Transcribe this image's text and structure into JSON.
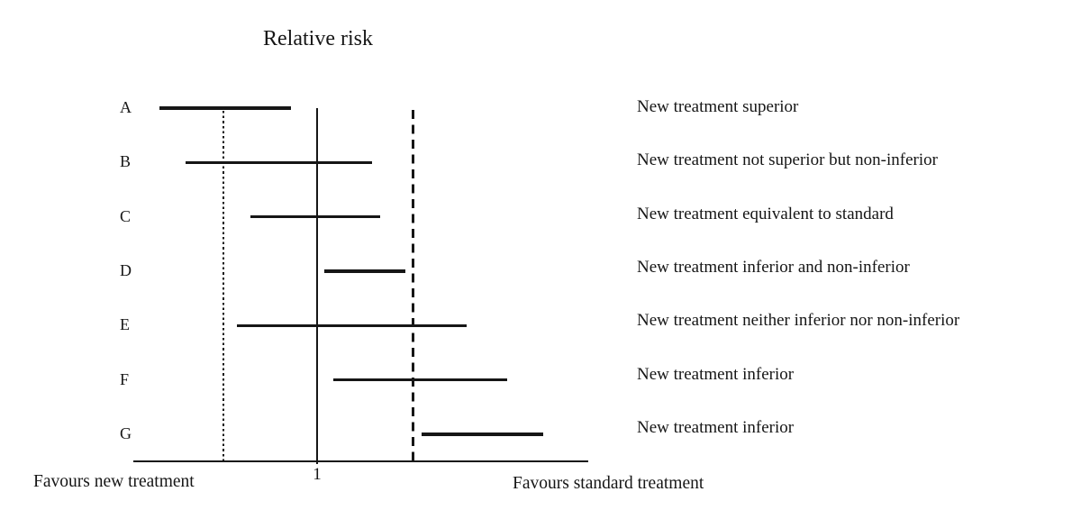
{
  "chart_data": {
    "type": "line",
    "subtype": "forest-plot-confidence-intervals",
    "title": "Relative risk",
    "x_axis": {
      "label_left": "Favours new treatment",
      "label_right": "Favours standard treatment",
      "tick_labels": [
        "1"
      ],
      "tick_values": [
        1
      ],
      "xlim": [
        0.5096,
        1.7236
      ],
      "scale": "linear",
      "grid": false
    },
    "reference_lines": [
      {
        "style": "solid",
        "value": 1.0
      },
      {
        "style": "dotted",
        "value": 0.75
      },
      {
        "style": "dashed",
        "value": 1.257
      }
    ],
    "rows": [
      {
        "id": "A",
        "ci_low": 0.58,
        "ci_high": 0.93,
        "label": "New treatment superior"
      },
      {
        "id": "B",
        "ci_low": 0.65,
        "ci_high": 1.147,
        "label": "New treatment not superior but non-inferior"
      },
      {
        "id": "C",
        "ci_low": 0.822,
        "ci_high": 1.168,
        "label": "New treatment equivalent to standard"
      },
      {
        "id": "D",
        "ci_low": 1.019,
        "ci_high": 1.236,
        "label": "New treatment inferior and non-inferior"
      },
      {
        "id": "E",
        "ci_low": 0.786,
        "ci_high": 1.399,
        "label": "New treatment neither inferior nor non-inferior"
      },
      {
        "id": "F",
        "ci_low": 1.043,
        "ci_high": 1.507,
        "label": "New treatment inferior"
      },
      {
        "id": "G",
        "ci_low": 1.279,
        "ci_high": 1.603,
        "label": "New treatment inferior"
      }
    ],
    "colors": {
      "ink": "#161616",
      "background": "#ffffff"
    },
    "note": "Only the tick '1' is labeled on the axis; numeric values are estimated assuming a linear scale with symmetric margin lines at about 0.75 (dotted) and 1.26 (dashed)."
  }
}
